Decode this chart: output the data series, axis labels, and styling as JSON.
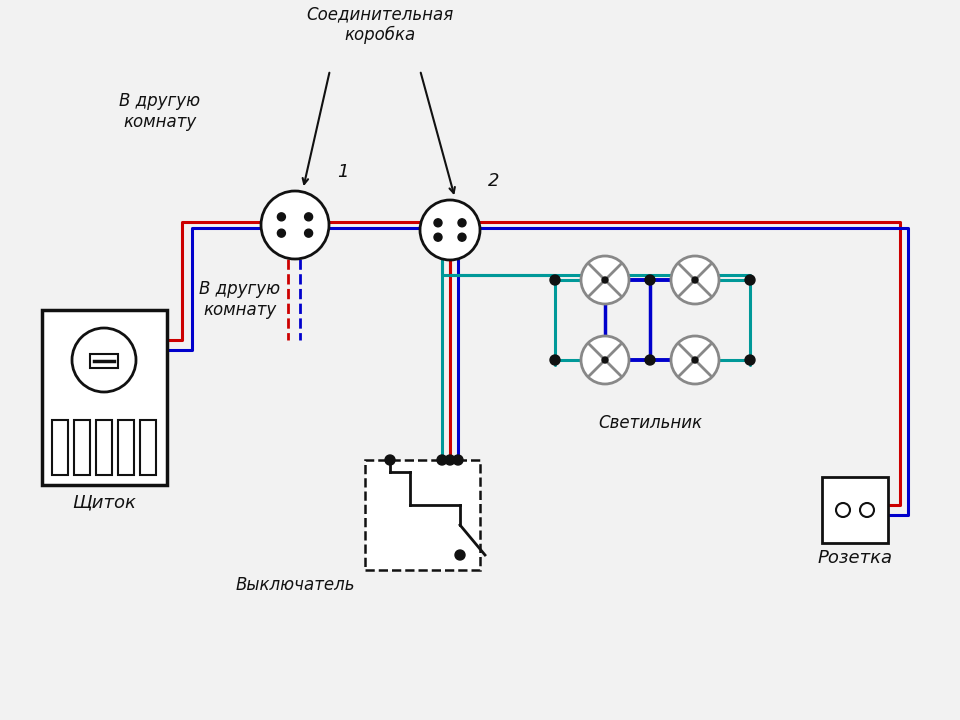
{
  "bg_color": "#f2f2f2",
  "colors": {
    "red": "#cc0000",
    "blue": "#0000cc",
    "green": "#009999",
    "black": "#111111",
    "gray": "#888888",
    "darkgray": "#444444"
  },
  "labels": {
    "junction_box": "Соединительная\nкоробка",
    "other_room1": "В другую\nкомнату",
    "other_room2": "В другую\nкомнату",
    "panel": "Щиток",
    "switch": "Выключатель",
    "lamp": "Светильник",
    "socket": "Розетка",
    "box1": "1",
    "box2": "2"
  }
}
